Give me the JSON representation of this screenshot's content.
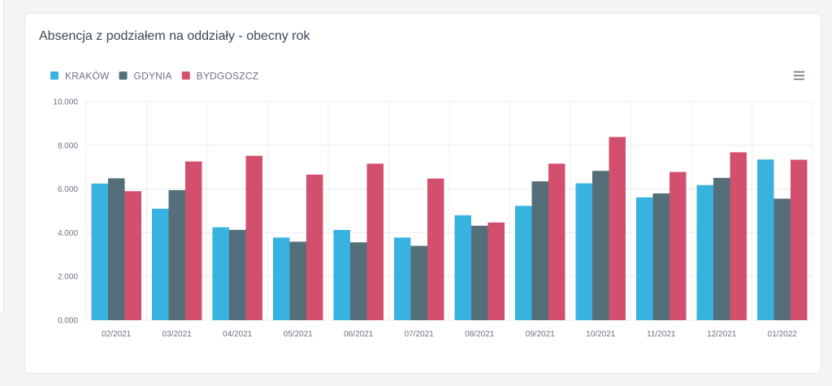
{
  "card": {
    "title": "Absencja z podziałem na oddziały - obecny rok"
  },
  "icons": {
    "menu": "hamburger-menu-icon"
  },
  "colors": {
    "series": [
      "#38b3e0",
      "#546e7a",
      "#d2506d"
    ],
    "grid": "#ececef",
    "text": "#6b7280"
  },
  "chart_data": {
    "type": "bar",
    "title": "Absencja z podziałem na oddziały - obecny rok",
    "xlabel": "",
    "ylabel": "",
    "ylim": [
      0,
      10000
    ],
    "yticks": [
      0,
      2000,
      4000,
      6000,
      8000,
      10000
    ],
    "ytick_labels": [
      "0.000",
      "2.000",
      "4.000",
      "6.000",
      "8.000",
      "10.000"
    ],
    "legend_position": "top-left",
    "grid": true,
    "categories": [
      "02/2021",
      "03/2021",
      "04/2021",
      "05/2021",
      "06/2021",
      "07/2021",
      "08/2021",
      "09/2021",
      "10/2021",
      "11/2021",
      "12/2021",
      "01/2022"
    ],
    "series": [
      {
        "name": "KRAKÓW",
        "color": "#38b3e0",
        "values": [
          6250,
          5100,
          4250,
          3780,
          4130,
          3780,
          4800,
          5230,
          6260,
          5620,
          6180,
          7350
        ]
      },
      {
        "name": "GDYNIA",
        "color": "#546e7a",
        "values": [
          6490,
          5950,
          4130,
          3590,
          3560,
          3400,
          4320,
          6350,
          6830,
          5800,
          6510,
          5560
        ]
      },
      {
        "name": "BYDGOSZCZ",
        "color": "#d2506d",
        "values": [
          5900,
          7260,
          7520,
          6660,
          7160,
          6480,
          4470,
          7160,
          8380,
          6780,
          7680,
          7340
        ]
      }
    ]
  }
}
